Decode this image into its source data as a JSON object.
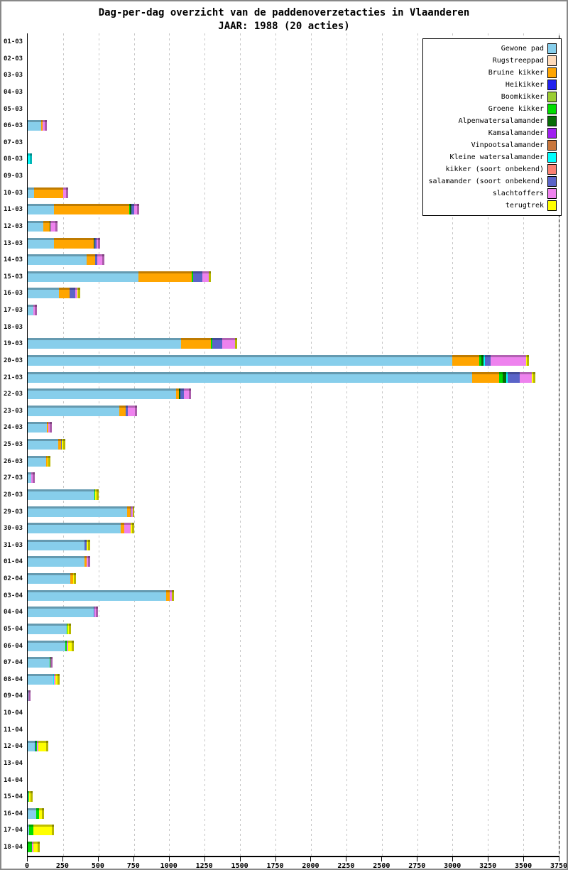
{
  "header": {
    "title": "Dag-per-dag overzicht van de paddenoverzetacties in Vlaanderen",
    "subtitle": "JAAR: 1988 (20 acties)"
  },
  "chart_data": {
    "type": "bar",
    "orientation": "horizontal",
    "stacked": true,
    "title": "Dag-per-dag overzicht van de paddenoverzetacties in Vlaanderen",
    "subtitle": "JAAR: 1988 (20 acties)",
    "xlim": [
      0,
      3750
    ],
    "xticks": [
      0,
      250,
      500,
      750,
      1000,
      1250,
      1500,
      1750,
      2000,
      2250,
      2500,
      2750,
      3000,
      3250,
      3500,
      3750
    ],
    "grid": "vertical-dashed",
    "legend_position": "top-right",
    "series": [
      {
        "name": "Gewone pad",
        "color": "#87CEEB"
      },
      {
        "name": "Rugstreeppad",
        "color": "#FFDAB9"
      },
      {
        "name": "Bruine kikker",
        "color": "#FFA500"
      },
      {
        "name": "Heikikker",
        "color": "#2020EE"
      },
      {
        "name": "Boomkikker",
        "color": "#9ACD32"
      },
      {
        "name": "Groene kikker",
        "color": "#00DD00"
      },
      {
        "name": "Alpenwatersalamander",
        "color": "#076B07"
      },
      {
        "name": "Kamsalamander",
        "color": "#A020F0"
      },
      {
        "name": "Vinpootsalamander",
        "color": "#C8763C"
      },
      {
        "name": "Kleine watersalamander",
        "color": "#00FFFF"
      },
      {
        "name": "kikker (soort onbekend)",
        "color": "#FA8072"
      },
      {
        "name": "salamander (soort onbekend)",
        "color": "#5A64C8"
      },
      {
        "name": "slachtoffers",
        "color": "#EE82EE"
      },
      {
        "name": "terugtrek",
        "color": "#FFFF00"
      }
    ],
    "rows": [
      {
        "date": "01-03",
        "segments": []
      },
      {
        "date": "02-03",
        "segments": []
      },
      {
        "date": "03-03",
        "segments": []
      },
      {
        "date": "04-03",
        "segments": []
      },
      {
        "date": "05-03",
        "segments": []
      },
      {
        "date": "06-03",
        "segments": [
          [
            "Gewone pad",
            95
          ],
          [
            "Bruine kikker",
            8
          ],
          [
            "slachtoffers",
            30
          ]
        ]
      },
      {
        "date": "07-03",
        "segments": []
      },
      {
        "date": "08-03",
        "segments": [
          [
            "Kleine watersalamander",
            30
          ]
        ]
      },
      {
        "date": "09-03",
        "segments": []
      },
      {
        "date": "10-03",
        "segments": [
          [
            "Gewone pad",
            45
          ],
          [
            "Bruine kikker",
            205
          ],
          [
            "slachtoffers",
            35
          ]
        ]
      },
      {
        "date": "11-03",
        "segments": [
          [
            "Gewone pad",
            185
          ],
          [
            "Bruine kikker",
            530
          ],
          [
            "Groene kikker",
            8
          ],
          [
            "Alpenwatersalamander",
            8
          ],
          [
            "salamander (soort onbekend)",
            20
          ],
          [
            "slachtoffers",
            35
          ]
        ]
      },
      {
        "date": "12-03",
        "segments": [
          [
            "Gewone pad",
            110
          ],
          [
            "Bruine kikker",
            45
          ],
          [
            "Alpenwatersalamander",
            6
          ],
          [
            "slachtoffers",
            52
          ]
        ]
      },
      {
        "date": "13-03",
        "segments": [
          [
            "Gewone pad",
            185
          ],
          [
            "Bruine kikker",
            280
          ],
          [
            "Alpenwatersalamander",
            8
          ],
          [
            "salamander (soort onbekend)",
            15
          ],
          [
            "slachtoffers",
            25
          ]
        ]
      },
      {
        "date": "14-03",
        "segments": [
          [
            "Gewone pad",
            415
          ],
          [
            "Bruine kikker",
            60
          ],
          [
            "salamander (soort onbekend)",
            17
          ],
          [
            "slachtoffers",
            48
          ]
        ]
      },
      {
        "date": "15-03",
        "segments": [
          [
            "Gewone pad",
            780
          ],
          [
            "Bruine kikker",
            380
          ],
          [
            "Groene kikker",
            10
          ],
          [
            "salamander (soort onbekend)",
            65
          ],
          [
            "slachtoffers",
            45
          ],
          [
            "terugtrek",
            15
          ]
        ]
      },
      {
        "date": "16-03",
        "segments": [
          [
            "Gewone pad",
            220
          ],
          [
            "Bruine kikker",
            75
          ],
          [
            "salamander (soort onbekend)",
            42
          ],
          [
            "slachtoffers",
            13
          ],
          [
            "terugtrek",
            20
          ]
        ]
      },
      {
        "date": "17-03",
        "segments": [
          [
            "Gewone pad",
            40
          ],
          [
            "slachtoffers",
            27
          ]
        ]
      },
      {
        "date": "18-03",
        "segments": []
      },
      {
        "date": "19-03",
        "segments": [
          [
            "Gewone pad",
            1085
          ],
          [
            "Bruine kikker",
            210
          ],
          [
            "Groene kikker",
            10
          ],
          [
            "salamander (soort onbekend)",
            70
          ],
          [
            "slachtoffers",
            90
          ],
          [
            "terugtrek",
            12
          ]
        ]
      },
      {
        "date": "20-03",
        "segments": [
          [
            "Gewone pad",
            3000
          ],
          [
            "Bruine kikker",
            190
          ],
          [
            "Groene kikker",
            15
          ],
          [
            "Alpenwatersalamander",
            15
          ],
          [
            "Kleine watersalamander",
            8
          ],
          [
            "salamander (soort onbekend)",
            40
          ],
          [
            "slachtoffers",
            250
          ],
          [
            "terugtrek",
            20
          ]
        ]
      },
      {
        "date": "21-03",
        "segments": [
          [
            "Gewone pad",
            3140
          ],
          [
            "Bruine kikker",
            190
          ],
          [
            "Groene kikker",
            25
          ],
          [
            "Alpenwatersalamander",
            25
          ],
          [
            "Kleine watersalamander",
            8
          ],
          [
            "salamander (soort onbekend)",
            85
          ],
          [
            "slachtoffers",
            85
          ],
          [
            "terugtrek",
            25
          ]
        ]
      },
      {
        "date": "22-03",
        "segments": [
          [
            "Gewone pad",
            1050
          ],
          [
            "Bruine kikker",
            20
          ],
          [
            "Alpenwatersalamander",
            10
          ],
          [
            "salamander (soort onbekend)",
            22
          ],
          [
            "slachtoffers",
            50
          ]
        ]
      },
      {
        "date": "23-03",
        "segments": [
          [
            "Gewone pad",
            645
          ],
          [
            "Bruine kikker",
            45
          ],
          [
            "salamander (soort onbekend)",
            17
          ],
          [
            "slachtoffers",
            67
          ]
        ]
      },
      {
        "date": "24-03",
        "segments": [
          [
            "Gewone pad",
            135
          ],
          [
            "Bruine kikker",
            12
          ],
          [
            "slachtoffers",
            25
          ]
        ]
      },
      {
        "date": "25-03",
        "segments": [
          [
            "Gewone pad",
            218
          ],
          [
            "Bruine kikker",
            17
          ],
          [
            "salamander (soort onbekend)",
            7
          ],
          [
            "terugtrek",
            22
          ]
        ]
      },
      {
        "date": "26-03",
        "segments": [
          [
            "Gewone pad",
            130
          ],
          [
            "Bruine kikker",
            8
          ],
          [
            "terugtrek",
            20
          ]
        ]
      },
      {
        "date": "27-03",
        "segments": [
          [
            "Gewone pad",
            23
          ],
          [
            "slachtoffers",
            27
          ]
        ]
      },
      {
        "date": "28-03",
        "segments": [
          [
            "Gewone pad",
            470
          ],
          [
            "Groene kikker",
            7
          ],
          [
            "terugtrek",
            22
          ]
        ]
      },
      {
        "date": "29-03",
        "segments": [
          [
            "Gewone pad",
            700
          ],
          [
            "Bruine kikker",
            25
          ],
          [
            "salamander (soort onbekend)",
            8
          ],
          [
            "slachtoffers",
            8
          ],
          [
            "terugtrek",
            13
          ]
        ]
      },
      {
        "date": "30-03",
        "segments": [
          [
            "Gewone pad",
            658
          ],
          [
            "Bruine kikker",
            25
          ],
          [
            "slachtoffers",
            42
          ],
          [
            "terugtrek",
            25
          ]
        ]
      },
      {
        "date": "31-03",
        "segments": [
          [
            "Gewone pad",
            403
          ],
          [
            "salamander (soort onbekend)",
            12
          ],
          [
            "terugtrek",
            28
          ]
        ]
      },
      {
        "date": "01-04",
        "segments": [
          [
            "Gewone pad",
            403
          ],
          [
            "Bruine kikker",
            12
          ],
          [
            "slachtoffers",
            25
          ]
        ]
      },
      {
        "date": "02-04",
        "segments": [
          [
            "Gewone pad",
            300
          ],
          [
            "Bruine kikker",
            22
          ],
          [
            "terugtrek",
            17
          ]
        ]
      },
      {
        "date": "03-04",
        "segments": [
          [
            "Gewone pad",
            980
          ],
          [
            "Bruine kikker",
            25
          ],
          [
            "slachtoffers",
            15
          ],
          [
            "terugtrek",
            15
          ]
        ]
      },
      {
        "date": "04-04",
        "segments": [
          [
            "Gewone pad",
            465
          ],
          [
            "salamander (soort onbekend)",
            8
          ],
          [
            "slachtoffers",
            22
          ]
        ]
      },
      {
        "date": "05-04",
        "segments": [
          [
            "Gewone pad",
            275
          ],
          [
            "Groene kikker",
            8
          ],
          [
            "terugtrek",
            22
          ]
        ]
      },
      {
        "date": "06-04",
        "segments": [
          [
            "Gewone pad",
            268
          ],
          [
            "Groene kikker",
            8
          ],
          [
            "slachtoffers",
            8
          ],
          [
            "terugtrek",
            41
          ]
        ]
      },
      {
        "date": "07-04",
        "segments": [
          [
            "Gewone pad",
            154
          ],
          [
            "Groene kikker",
            8
          ],
          [
            "slachtoffers",
            13
          ]
        ]
      },
      {
        "date": "08-04",
        "segments": [
          [
            "Gewone pad",
            180
          ],
          [
            "Kleine watersalamander",
            8
          ],
          [
            "slachtoffers",
            10
          ],
          [
            "terugtrek",
            30
          ]
        ]
      },
      {
        "date": "09-04",
        "segments": [
          [
            "Gewone pad",
            5
          ],
          [
            "slachtoffers",
            15
          ]
        ]
      },
      {
        "date": "10-04",
        "segments": []
      },
      {
        "date": "11-04",
        "segments": []
      },
      {
        "date": "12-04",
        "segments": [
          [
            "Gewone pad",
            50
          ],
          [
            "Heikikker",
            5
          ],
          [
            "Groene kikker",
            12
          ],
          [
            "slachtoffers",
            6
          ],
          [
            "terugtrek",
            75
          ]
        ]
      },
      {
        "date": "13-04",
        "segments": []
      },
      {
        "date": "14-04",
        "segments": []
      },
      {
        "date": "15-04",
        "segments": [
          [
            "Gewone pad",
            5
          ],
          [
            "Groene kikker",
            5
          ],
          [
            "terugtrek",
            25
          ]
        ]
      },
      {
        "date": "16-04",
        "segments": [
          [
            "Gewone pad",
            62
          ],
          [
            "Groene kikker",
            17
          ],
          [
            "terugtrek",
            38
          ]
        ]
      },
      {
        "date": "17-04",
        "segments": [
          [
            "Gewone pad",
            12
          ],
          [
            "Groene kikker",
            28
          ],
          [
            "terugtrek",
            145
          ]
        ]
      },
      {
        "date": "18-04",
        "segments": [
          [
            "Groene kikker",
            28
          ],
          [
            "slachtoffers",
            14
          ],
          [
            "terugtrek",
            45
          ]
        ]
      }
    ]
  }
}
